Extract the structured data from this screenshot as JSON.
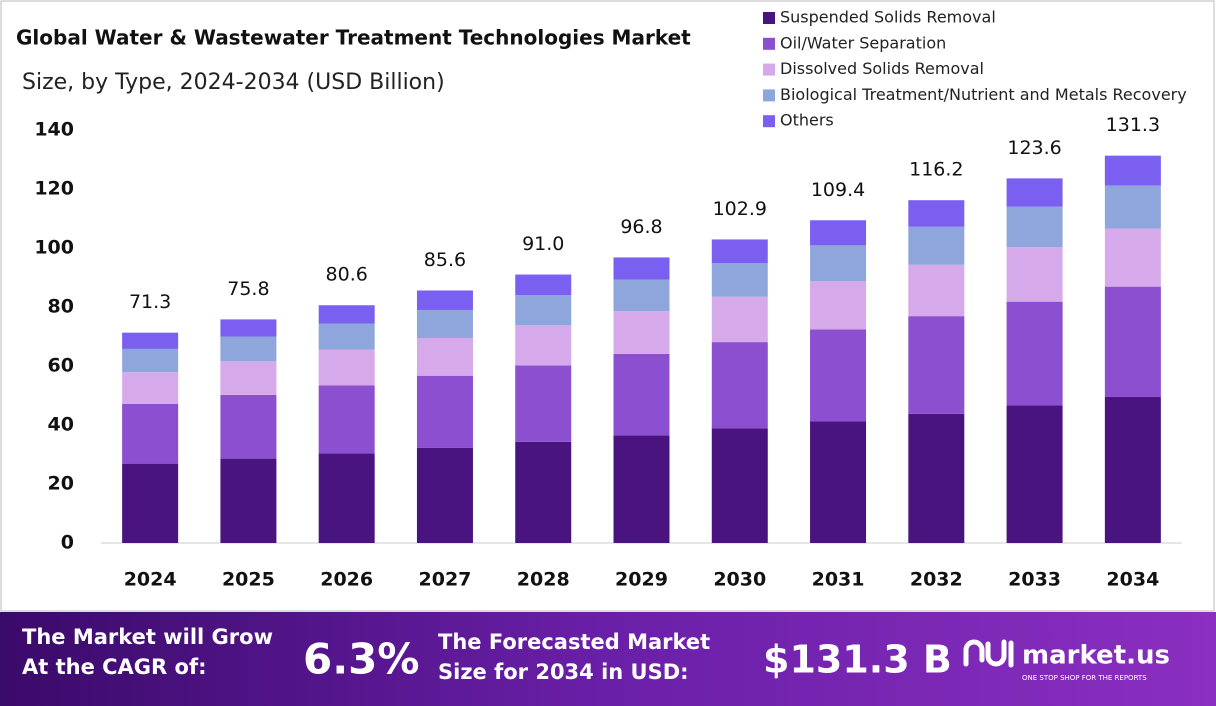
{
  "chart_data": {
    "type": "stacked-bar",
    "title": "Global Water & Wastewater Treatment Technologies Market",
    "subtitle": "Size, by Type, 2024-2034 (USD Billion)",
    "categories": [
      "2024",
      "2025",
      "2026",
      "2027",
      "2028",
      "2029",
      "2030",
      "2031",
      "2032",
      "2033",
      "2034"
    ],
    "series": [
      {
        "name": "Suspended Solids Removal",
        "color": "#4a1480",
        "values": [
          26.9,
          28.6,
          30.4,
          32.3,
          34.3,
          36.5,
          38.8,
          41.2,
          43.8,
          46.6,
          49.5
        ]
      },
      {
        "name": "Oil/Water Separation",
        "color": "#8b4fcf",
        "values": [
          20.3,
          21.6,
          23.0,
          24.4,
          25.9,
          27.6,
          29.3,
          31.2,
          33.1,
          35.2,
          37.4
        ]
      },
      {
        "name": "Dissolved Solids Removal",
        "color": "#d6aaea",
        "values": [
          10.7,
          11.4,
          12.1,
          12.8,
          13.7,
          14.5,
          15.4,
          16.4,
          17.4,
          18.5,
          19.7
        ]
      },
      {
        "name": "Biological Treatment/Nutrient and Metals Recovery",
        "color": "#8fa6dc",
        "values": [
          7.9,
          8.4,
          8.9,
          9.5,
          10.1,
          10.7,
          11.4,
          12.1,
          12.9,
          13.7,
          14.6
        ]
      },
      {
        "name": "Others",
        "color": "#7b5ff0",
        "values": [
          5.5,
          5.8,
          6.2,
          6.6,
          7.0,
          7.5,
          8.0,
          8.5,
          9.0,
          9.6,
          10.1
        ]
      }
    ],
    "totals": [
      71.3,
      75.8,
      80.6,
      85.6,
      91.0,
      96.8,
      102.9,
      109.4,
      116.2,
      123.6,
      131.3
    ],
    "total_labels": [
      "71.3",
      "75.8",
      "80.6",
      "85.6",
      "91.0",
      "96.8",
      "102.9",
      "109.4",
      "116.2",
      "123.6",
      "131.3"
    ],
    "ylim": [
      0,
      140
    ],
    "yticks": [
      0,
      20,
      40,
      60,
      80,
      100,
      120,
      140
    ],
    "grid": false,
    "legend": "top-right"
  },
  "footer": {
    "cagr_text": "The Market will Grow At the CAGR of:",
    "cagr_value": "6.3%",
    "size_text": "The Forecasted Market Size for 2034 in USD:",
    "size_value": "$131.3 B",
    "brand": "market.us",
    "tagline": "ONE STOP SHOP FOR THE REPORTS"
  }
}
